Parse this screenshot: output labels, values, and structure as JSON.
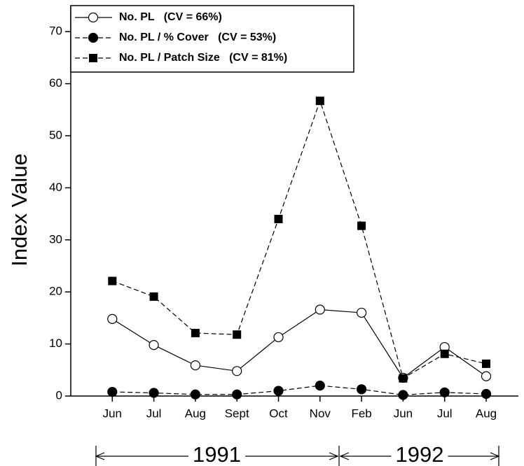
{
  "chart_data": {
    "type": "line",
    "ylabel": "Index Value",
    "categories": [
      "Jun",
      "Jul",
      "Aug",
      "Sept",
      "Oct",
      "Nov",
      "Feb",
      "Jun",
      "Jul",
      "Aug"
    ],
    "groups": [
      "1991",
      "1992"
    ],
    "ylim": [
      0,
      75
    ],
    "yticks": [
      0,
      10,
      20,
      30,
      40,
      50,
      60,
      70
    ],
    "legend": "upper left",
    "series": [
      {
        "name": "No. PL   (CV = 66%)",
        "color": "#000000",
        "marker": "open-circle",
        "dash": "solid",
        "values": [
          14.8,
          9.8,
          5.9,
          4.8,
          11.3,
          16.6,
          16.0,
          3.5,
          9.4,
          3.8
        ]
      },
      {
        "name": "No. PL / % Cover   (CV = 53%)",
        "color": "#000000",
        "marker": "filled-circle",
        "dash": "dashed",
        "values": [
          0.8,
          0.6,
          0.3,
          0.3,
          1.0,
          2.0,
          1.3,
          0.2,
          0.7,
          0.4
        ]
      },
      {
        "name": "No. PL / Patch Size   (CV = 81%)",
        "color": "#000000",
        "marker": "square",
        "dash": "dashed",
        "values": [
          22.1,
          19.1,
          12.1,
          11.8,
          34.0,
          56.7,
          32.7,
          3.4,
          8.1,
          6.2
        ]
      }
    ]
  }
}
